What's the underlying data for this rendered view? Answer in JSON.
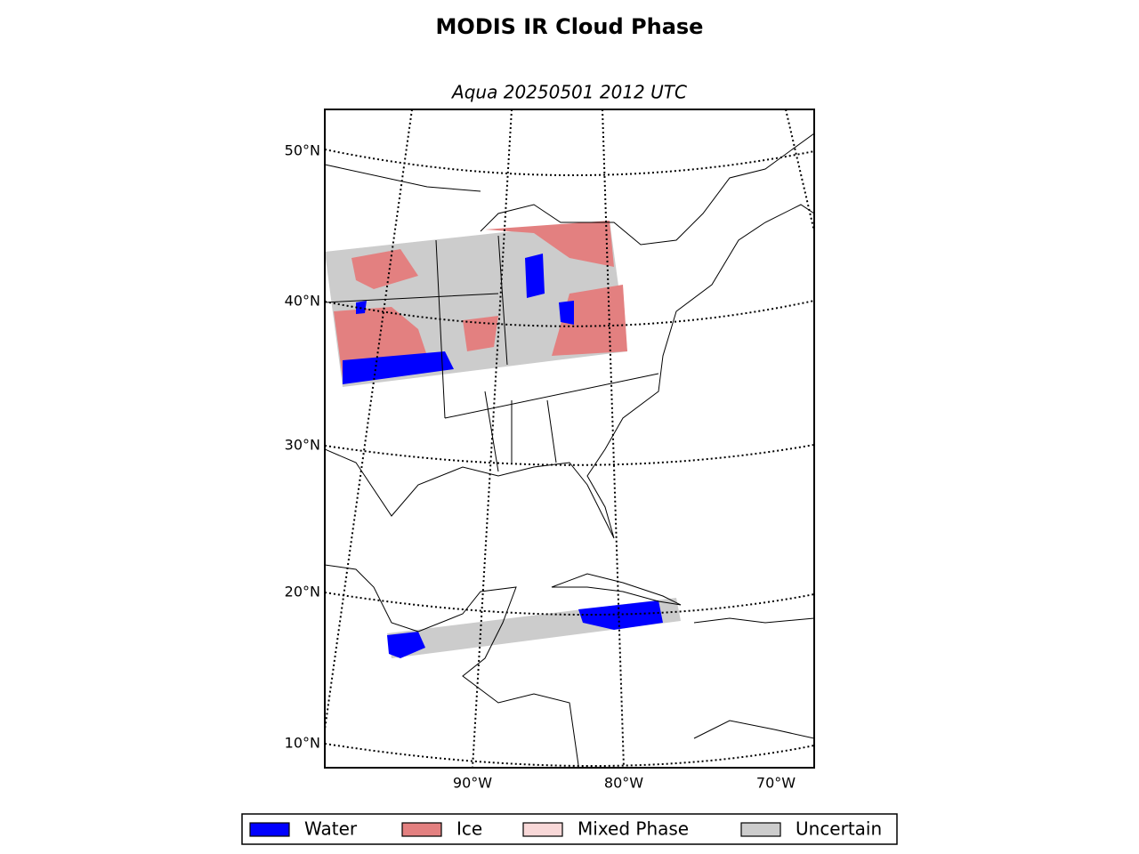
{
  "title": "MODIS IR Cloud Phase",
  "subtitle": "Aqua 20250501 2012 UTC",
  "map": {
    "lat_labels": [
      "50°N",
      "40°N",
      "30°N",
      "20°N",
      "10°N"
    ],
    "lon_labels": [
      "90°W",
      "80°W",
      "70°W"
    ]
  },
  "legend": [
    {
      "name": "Water",
      "color": "#0000ff"
    },
    {
      "name": "Ice",
      "color": "#e38080"
    },
    {
      "name": "Mixed Phase",
      "color": "#f8d8d8"
    },
    {
      "name": "Uncertain",
      "color": "#cccccc"
    }
  ]
}
